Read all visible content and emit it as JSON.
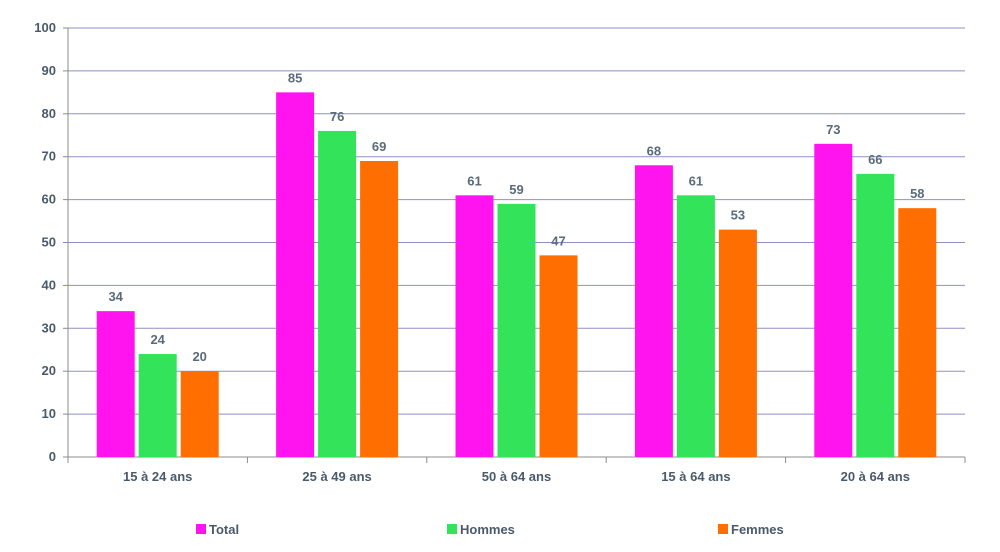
{
  "chart_data": {
    "type": "bar",
    "categories": [
      "15 à 24 ans",
      "25 à 49 ans",
      "50 à 64 ans",
      "15 à 64 ans",
      "20 à 64 ans"
    ],
    "series": [
      {
        "name": "Total",
        "color": "#ff14f0",
        "values": [
          34,
          85,
          61,
          68,
          73
        ]
      },
      {
        "name": "Hommes",
        "color": "#33e35a",
        "values": [
          24,
          76,
          59,
          61,
          66
        ]
      },
      {
        "name": "Femmes",
        "color": "#ff6e00",
        "values": [
          20,
          69,
          47,
          53,
          58
        ]
      }
    ],
    "ylim": [
      0,
      100
    ],
    "yticks": [
      "0",
      "10",
      "20",
      "30",
      "40",
      "50",
      "60",
      "70",
      "80",
      "90",
      "100"
    ],
    "grid": true,
    "legend_position": "bottom",
    "colors": {
      "grid": "#8f8fc8",
      "axis": "#8c8c8c",
      "text": "#4a5a6b"
    }
  }
}
